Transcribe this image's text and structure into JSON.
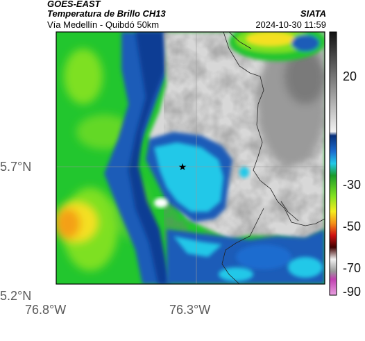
{
  "header": {
    "satellite": "GOES-EAST",
    "product": "Temperatura de Brillo CH13",
    "region": "Vía Medellín - Quibdó 50km",
    "organization": "SIATA",
    "timestamp": "2024-10-30 11:59"
  },
  "map": {
    "lat_labels": [
      "5.7°N",
      "5.2°N"
    ],
    "lon_labels": [
      "76.8°W",
      "76.3°W"
    ],
    "marker": "star-marker",
    "colors": {
      "warm_gray": "#d8d8d8",
      "cold_blue": "#1a5cb8",
      "cyan": "#22c8e8",
      "green": "#22c62e",
      "lime": "#7ee020",
      "yellow": "#f4e020",
      "orange": "#f4a018",
      "frame": "#000000",
      "gridline": "#9a9a9a"
    }
  },
  "colorbar": {
    "tick_labels": [
      "20",
      "-30",
      "-50",
      "-70",
      "-90"
    ],
    "stops": [
      {
        "value": 40,
        "color": "#111111"
      },
      {
        "value": -10,
        "color": "#f2f2f2"
      },
      {
        "value": -12,
        "color": "#08307a"
      },
      {
        "value": -20,
        "color": "#1a6ccf"
      },
      {
        "value": -26,
        "color": "#22c8e8"
      },
      {
        "value": -32,
        "color": "#1a9a2a"
      },
      {
        "value": -42,
        "color": "#7ee020"
      },
      {
        "value": -50,
        "color": "#f4ec20"
      },
      {
        "value": -56,
        "color": "#f49018"
      },
      {
        "value": -62,
        "color": "#d01010"
      },
      {
        "value": -68,
        "color": "#400000"
      },
      {
        "value": -74,
        "color": "#f0f0f0"
      },
      {
        "value": -80,
        "color": "#9a9a9a"
      },
      {
        "value": -84,
        "color": "#c040b0"
      },
      {
        "value": -92,
        "color": "#e8a0e0"
      }
    ],
    "range": [
      -92,
      40
    ]
  }
}
